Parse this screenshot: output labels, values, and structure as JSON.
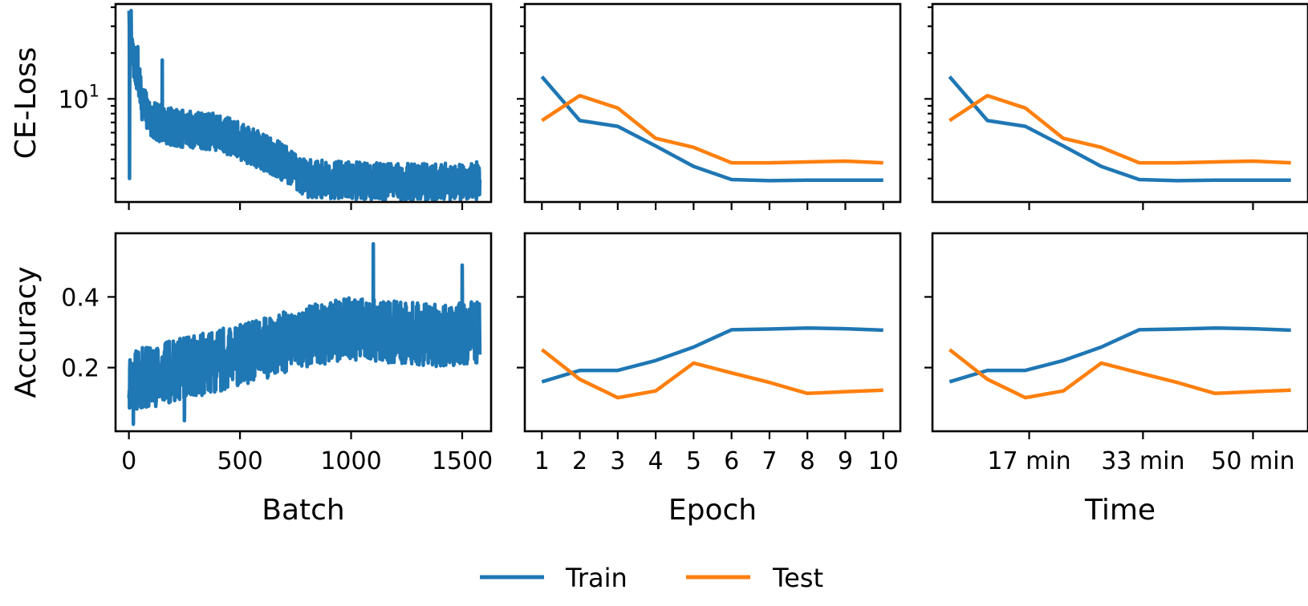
{
  "colors": {
    "train": "#1f77b4",
    "test": "#ff7f0e"
  },
  "legend": {
    "placement": "bottom-center",
    "items": [
      {
        "label": "Train",
        "color": "#1f77b4"
      },
      {
        "label": "Test",
        "color": "#ff7f0e"
      }
    ]
  },
  "chart_data": [
    {
      "id": "loss-batch",
      "type": "line",
      "xlabel": "",
      "ylabel": "CE-Loss",
      "yscale": "log",
      "xlim": [
        -60,
        1630
      ],
      "ylim": [
        2.1,
        42
      ],
      "xticks": [
        0,
        500,
        1000,
        1500
      ],
      "xtick_labels": [],
      "yticks": [
        10
      ],
      "ytick_labels": [
        "10^1"
      ],
      "series": [
        {
          "key": "train",
          "color": "#1f77b4",
          "noisy": true,
          "n": 1580,
          "noise": 0.13,
          "seed": 7,
          "spikes": [
            [
              0,
              38
            ],
            [
              3,
              3.0
            ],
            [
              10,
              38
            ],
            [
              40,
              22
            ],
            [
              150,
              18
            ]
          ],
          "trend_x": [
            0,
            20,
            60,
            100,
            200,
            400,
            600,
            800,
            1000,
            1200,
            1400,
            1580
          ],
          "trend_y": [
            30,
            18,
            9.5,
            7.2,
            6.5,
            6.0,
            4.5,
            3.0,
            2.9,
            2.85,
            2.85,
            2.9
          ]
        }
      ]
    },
    {
      "id": "loss-epoch",
      "type": "line",
      "xlabel": "",
      "ylabel": "",
      "yscale": "log",
      "xlim": [
        0.55,
        10.45
      ],
      "ylim": [
        2.1,
        42
      ],
      "xticks": [
        1,
        2,
        3,
        4,
        5,
        6,
        7,
        8,
        9,
        10
      ],
      "xtick_labels": [],
      "yticks": [
        10
      ],
      "ytick_labels": [],
      "series": [
        {
          "key": "train",
          "color": "#1f77b4",
          "x": [
            1,
            2,
            3,
            4,
            5,
            6,
            7,
            8,
            9,
            10
          ],
          "y": [
            14,
            7.2,
            6.6,
            4.9,
            3.6,
            2.95,
            2.9,
            2.92,
            2.92,
            2.92
          ]
        },
        {
          "key": "test",
          "color": "#ff7f0e",
          "x": [
            1,
            2,
            3,
            4,
            5,
            6,
            7,
            8,
            9,
            10
          ],
          "y": [
            7.2,
            10.5,
            8.7,
            5.5,
            4.8,
            3.8,
            3.8,
            3.85,
            3.9,
            3.8
          ]
        }
      ]
    },
    {
      "id": "loss-time",
      "type": "line",
      "xlabel": "",
      "ylabel": "",
      "yscale": "log",
      "xlim": [
        0.55,
        10.45
      ],
      "ylim": [
        2.1,
        42
      ],
      "xticks": [
        3.1,
        6.1,
        9.0
      ],
      "xtick_labels": [],
      "yticks": [
        10
      ],
      "ytick_labels": [],
      "series": [
        {
          "key": "train",
          "color": "#1f77b4",
          "x": [
            1,
            2,
            3,
            4,
            5,
            6,
            7,
            8,
            9,
            10
          ],
          "y": [
            14,
            7.2,
            6.6,
            4.9,
            3.6,
            2.95,
            2.9,
            2.92,
            2.92,
            2.92
          ]
        },
        {
          "key": "test",
          "color": "#ff7f0e",
          "x": [
            1,
            2,
            3,
            4,
            5,
            6,
            7,
            8,
            9,
            10
          ],
          "y": [
            7.2,
            10.5,
            8.7,
            5.5,
            4.8,
            3.8,
            3.8,
            3.85,
            3.9,
            3.8
          ]
        }
      ]
    },
    {
      "id": "acc-batch",
      "type": "line",
      "xlabel": "Batch",
      "ylabel": "Accuracy",
      "yscale": "linear",
      "xlim": [
        -60,
        1630
      ],
      "ylim": [
        0.02,
        0.58
      ],
      "xticks": [
        0,
        500,
        1000,
        1500
      ],
      "xtick_labels": [
        "0",
        "500",
        "1000",
        "1500"
      ],
      "yticks": [
        0.2,
        0.4
      ],
      "ytick_labels": [
        "0.2",
        "0.4"
      ],
      "series": [
        {
          "key": "train",
          "color": "#1f77b4",
          "noisy": true,
          "n": 1580,
          "noise": 0.055,
          "seed": 11,
          "spikes": [
            [
              1100,
              0.55
            ],
            [
              1500,
              0.49
            ],
            [
              250,
              0.05
            ],
            [
              20,
              0.04
            ]
          ],
          "trend_x": [
            0,
            200,
            400,
            600,
            800,
            1000,
            1200,
            1400,
            1580
          ],
          "trend_y": [
            0.16,
            0.19,
            0.22,
            0.25,
            0.29,
            0.31,
            0.3,
            0.29,
            0.3
          ]
        }
      ]
    },
    {
      "id": "acc-epoch",
      "type": "line",
      "xlabel": "Epoch",
      "ylabel": "",
      "yscale": "linear",
      "xlim": [
        0.55,
        10.45
      ],
      "ylim": [
        0.02,
        0.58
      ],
      "xticks": [
        1,
        2,
        3,
        4,
        5,
        6,
        7,
        8,
        9,
        10
      ],
      "xtick_labels": [
        "1",
        "2",
        "3",
        "4",
        "5",
        "6",
        "7",
        "8",
        "9",
        "10"
      ],
      "yticks": [
        0.2,
        0.4
      ],
      "ytick_labels": [],
      "series": [
        {
          "key": "train",
          "color": "#1f77b4",
          "x": [
            1,
            2,
            3,
            4,
            5,
            6,
            7,
            8,
            9,
            10
          ],
          "y": [
            0.16,
            0.192,
            0.192,
            0.22,
            0.258,
            0.307,
            0.309,
            0.312,
            0.31,
            0.306
          ]
        },
        {
          "key": "test",
          "color": "#ff7f0e",
          "x": [
            1,
            2,
            3,
            4,
            5,
            6,
            7,
            8,
            9,
            10
          ],
          "y": [
            0.251,
            0.167,
            0.115,
            0.134,
            0.213,
            0.185,
            0.158,
            0.127,
            0.132,
            0.136
          ]
        }
      ]
    },
    {
      "id": "acc-time",
      "type": "line",
      "xlabel": "Time",
      "ylabel": "",
      "yscale": "linear",
      "xlim": [
        0.55,
        10.45
      ],
      "ylim": [
        0.02,
        0.58
      ],
      "xticks": [
        3.1,
        6.1,
        9.0
      ],
      "xtick_labels": [
        "17 min",
        "33 min",
        "50 min"
      ],
      "yticks": [
        0.2,
        0.4
      ],
      "ytick_labels": [],
      "series": [
        {
          "key": "train",
          "color": "#1f77b4",
          "x": [
            1,
            2,
            3,
            4,
            5,
            6,
            7,
            8,
            9,
            10
          ],
          "y": [
            0.16,
            0.192,
            0.192,
            0.22,
            0.258,
            0.307,
            0.309,
            0.312,
            0.31,
            0.306
          ]
        },
        {
          "key": "test",
          "color": "#ff7f0e",
          "x": [
            1,
            2,
            3,
            4,
            5,
            6,
            7,
            8,
            9,
            10
          ],
          "y": [
            0.251,
            0.167,
            0.115,
            0.134,
            0.213,
            0.185,
            0.158,
            0.127,
            0.132,
            0.136
          ]
        }
      ]
    }
  ]
}
